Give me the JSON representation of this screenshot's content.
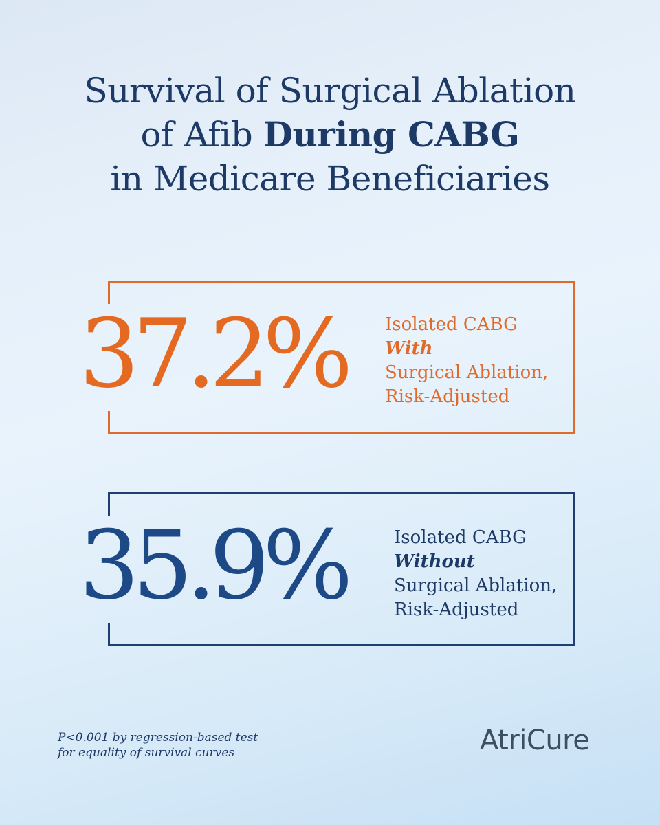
{
  "title": {
    "line1": "Survival of Surgical Ablation",
    "line2_prefix": "of Afib ",
    "line2_bold": "During CABG",
    "line3": "in Medicare Beneficiaries"
  },
  "stats": [
    {
      "value": "37.2%",
      "label_line1": "Isolated CABG",
      "label_emphasis": "With",
      "label_line3": "Surgical Ablation,",
      "label_line4": "Risk-Adjusted",
      "color": "#e46a22"
    },
    {
      "value": "35.9%",
      "label_line1": "Isolated CABG",
      "label_emphasis": "Without",
      "label_line3": "Surgical Ablation,",
      "label_line4": "Risk-Adjusted",
      "color": "#1d4a86"
    }
  ],
  "footnote": {
    "line1": "P<0.001 by regression-based test",
    "line2": "for equality of survival curves"
  },
  "logo": {
    "text": "AtriCure"
  }
}
